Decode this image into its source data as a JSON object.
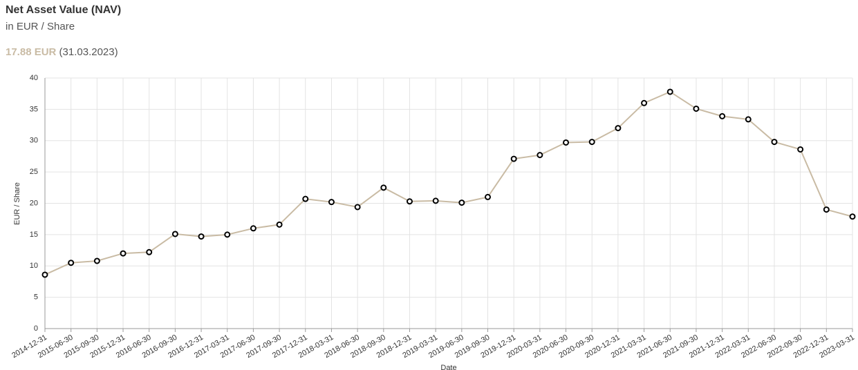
{
  "header": {
    "title": "Net Asset Value (NAV)",
    "subtitle": "in EUR / Share",
    "latest_value": "17.88 EUR",
    "latest_date": "(31.03.2023)"
  },
  "chart_data": {
    "type": "line",
    "x_label": "Date",
    "y_label": "EUR / Share",
    "categories": [
      "2014-12-31",
      "2015-06-30",
      "2015-09-30",
      "2015-12-31",
      "2016-06-30",
      "2016-09-30",
      "2016-12-31",
      "2017-03-31",
      "2017-06-30",
      "2017-09-30",
      "2017-12-31",
      "2018-03-31",
      "2018-06-30",
      "2018-09-30",
      "2018-12-31",
      "2019-03-31",
      "2019-06-30",
      "2019-09-30",
      "2019-12-31",
      "2020-03-31",
      "2020-06-30",
      "2020-09-30",
      "2020-12-31",
      "2021-03-31",
      "2021-06-30",
      "2021-09-30",
      "2021-12-31",
      "2022-03-31",
      "2022-06-30",
      "2022-09-30",
      "2022-12-31",
      "2023-03-31"
    ],
    "series": [
      {
        "name": "NAV",
        "color": "#c9bba4",
        "values": [
          8.6,
          10.5,
          10.8,
          12.0,
          12.2,
          15.1,
          14.7,
          15.0,
          16.0,
          16.6,
          20.7,
          20.2,
          19.4,
          22.5,
          20.3,
          20.4,
          20.1,
          21.0,
          27.1,
          27.7,
          29.7,
          29.8,
          32.0,
          36.0,
          37.8,
          35.1,
          33.9,
          33.4,
          29.8,
          28.6,
          19.0,
          17.88
        ]
      }
    ],
    "ylim": [
      0,
      40
    ],
    "yticks": [
      0,
      5,
      10,
      15,
      20,
      25,
      30,
      35,
      40
    ],
    "grid": true
  }
}
